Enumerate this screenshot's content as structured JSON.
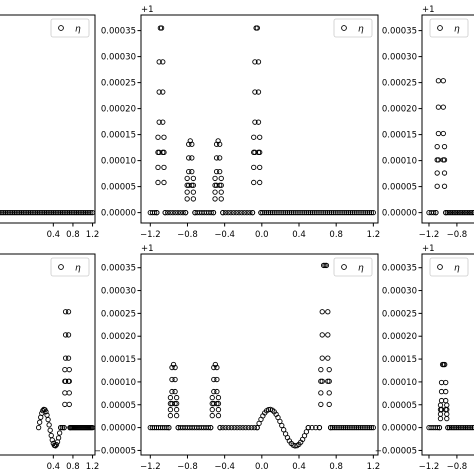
{
  "chart_data": [
    {
      "type": "scatter",
      "position": "top-left",
      "offset_label": "",
      "legend": {
        "marker": "circle",
        "label": "η",
        "placement": "top-right"
      },
      "xlim": [
        -1.3,
        1.25
      ],
      "ylim": [
        -2e-05,
        0.00038
      ],
      "xticks": [
        0.4,
        0.8,
        1.2
      ],
      "xtick_labels": [
        "0.4",
        "0.8",
        "1.2"
      ],
      "yticks": [],
      "ytick_labels": [],
      "series": [
        {
          "segments": [
            {
              "x_start": -1.3,
              "x_end": 1.2,
              "count": 70,
              "y": 0
            }
          ]
        }
      ]
    },
    {
      "type": "scatter",
      "position": "top-middle",
      "offset_label": "+1",
      "legend": {
        "marker": "circle",
        "label": "η",
        "placement": "top-right"
      },
      "xlim": [
        -1.3,
        1.25
      ],
      "ylim": [
        -2e-05,
        0.00038
      ],
      "xticks": [
        -1.2,
        -0.8,
        -0.4,
        0.0,
        0.4,
        0.8,
        1.2
      ],
      "xtick_labels": [
        "−1.2",
        "−0.8",
        "−0.4",
        "0.0",
        "0.4",
        "0.8",
        "1.2"
      ],
      "yticks": [
        0,
        5e-05,
        0.0001,
        0.00015,
        0.0002,
        0.00025,
        0.0003,
        0.00035
      ],
      "ytick_labels": [
        "0.00000",
        "0.00005",
        "0.00010",
        "0.00015",
        "0.00020",
        "0.00025",
        "0.00030",
        "0.00035"
      ],
      "series": [
        {
          "segments": [
            {
              "x_start": -1.2,
              "x_end": -1.13,
              "count": 4,
              "y": 0
            },
            {
              "x_start": -1.13,
              "x_end": -1.04,
              "count": 8,
              "y": 0.000355,
              "shape": "peak"
            },
            {
              "x_start": -1.04,
              "x_end": -0.82,
              "count": 9,
              "y": 0
            },
            {
              "x_start": -0.82,
              "x_end": -0.72,
              "count": 7,
              "y": 0.000138,
              "shape": "peak"
            },
            {
              "x_start": -0.72,
              "x_end": -0.52,
              "count": 9,
              "y": 0
            },
            {
              "x_start": -0.52,
              "x_end": -0.42,
              "count": 7,
              "y": 0.000138,
              "shape": "peak"
            },
            {
              "x_start": -0.42,
              "x_end": -0.1,
              "count": 12,
              "y": 0
            },
            {
              "x_start": -0.1,
              "x_end": -0.01,
              "count": 8,
              "y": 0.000355,
              "shape": "peak"
            },
            {
              "x_start": -0.01,
              "x_end": 1.2,
              "count": 60,
              "y": 0
            }
          ]
        }
      ]
    },
    {
      "type": "scatter",
      "position": "top-right",
      "offset_label": "+1",
      "legend": {
        "marker": "circle",
        "label": "η",
        "placement": "top-right"
      },
      "xlim": [
        -1.3,
        1.25
      ],
      "ylim": [
        -2e-05,
        0.00038
      ],
      "xticks": [
        -1.2,
        -0.8
      ],
      "xtick_labels": [
        "−1.2",
        "−0.8"
      ],
      "yticks": [
        0,
        5e-05,
        0.0001,
        0.00015,
        0.0002,
        0.00025,
        0.0003,
        0.00035
      ],
      "ytick_labels": [
        "0.00000",
        "0.00005",
        "0.00010",
        "0.00015",
        "0.00020",
        "0.00025",
        "0.00030",
        "0.00035"
      ],
      "series": [
        {
          "segments": [
            {
              "x_start": -1.2,
              "x_end": -1.1,
              "count": 4,
              "y": 0
            },
            {
              "x_start": -1.1,
              "x_end": -0.96,
              "count": 9,
              "y": 0.000355,
              "shape": "peak"
            },
            {
              "x_start": -0.96,
              "x_end": -0.55,
              "count": 18,
              "y": 0
            }
          ]
        }
      ]
    },
    {
      "type": "scatter",
      "position": "bottom-left",
      "offset_label": "",
      "legend": {
        "marker": "circle",
        "label": "η",
        "placement": "top-right"
      },
      "xlim": [
        -1.3,
        1.25
      ],
      "ylim": [
        -6e-05,
        0.00038
      ],
      "xticks": [
        0.4,
        0.8,
        1.2
      ],
      "xtick_labels": [
        "0.4",
        "0.8",
        "1.2"
      ],
      "yticks": [],
      "ytick_labels": [],
      "series": [
        {
          "segments": [
            {
              "x_start": 0.1,
              "x_end": 0.55,
              "count": 22,
              "y": 4e-05,
              "shape": "wave"
            },
            {
              "x_start": 0.55,
              "x_end": 0.62,
              "count": 3,
              "y": 0
            },
            {
              "x_start": 0.62,
              "x_end": 0.74,
              "count": 9,
              "y": 0.000355,
              "shape": "peak"
            },
            {
              "x_start": 0.74,
              "x_end": 1.2,
              "count": 24,
              "y": 0
            }
          ]
        }
      ]
    },
    {
      "type": "scatter",
      "position": "bottom-middle",
      "offset_label": "+1",
      "legend": {
        "marker": "circle",
        "label": "η",
        "placement": "top-right"
      },
      "xlim": [
        -1.3,
        1.25
      ],
      "ylim": [
        -6e-05,
        0.00038
      ],
      "xticks": [
        -1.2,
        -0.8,
        -0.4,
        0.0,
        0.4,
        0.8,
        1.2
      ],
      "xtick_labels": [
        "−1.2",
        "−0.8",
        "−0.4",
        "0.0",
        "0.4",
        "0.8",
        "1.2"
      ],
      "yticks": [
        -5e-05,
        0,
        5e-05,
        0.0001,
        0.00015,
        0.0002,
        0.00025,
        0.0003,
        0.00035
      ],
      "ytick_labels": [
        "−0.00005",
        "0.00000",
        "0.00005",
        "0.00010",
        "0.00015",
        "0.00020",
        "0.00025",
        "0.00030",
        "0.00035"
      ],
      "series": [
        {
          "segments": [
            {
              "x_start": -1.2,
              "x_end": -1.0,
              "count": 10,
              "y": 0
            },
            {
              "x_start": -1.0,
              "x_end": -0.9,
              "count": 7,
              "y": 0.000138,
              "shape": "peak"
            },
            {
              "x_start": -0.9,
              "x_end": -0.55,
              "count": 15,
              "y": 0
            },
            {
              "x_start": -0.55,
              "x_end": -0.45,
              "count": 7,
              "y": 0.000138,
              "shape": "peak"
            },
            {
              "x_start": -0.45,
              "x_end": -0.05,
              "count": 14,
              "y": 0
            },
            {
              "x_start": -0.05,
              "x_end": 0.5,
              "count": 28,
              "y": 4e-05,
              "shape": "wave"
            },
            {
              "x_start": 0.5,
              "x_end": 0.62,
              "count": 4,
              "y": 0
            },
            {
              "x_start": 0.62,
              "x_end": 0.74,
              "count": 9,
              "y": 0.000355,
              "shape": "peak"
            },
            {
              "x_start": 0.74,
              "x_end": 1.2,
              "count": 24,
              "y": 0
            }
          ]
        }
      ]
    },
    {
      "type": "scatter",
      "position": "bottom-right",
      "offset_label": "+1",
      "legend": {
        "marker": "circle",
        "label": "η",
        "placement": "top-right"
      },
      "xlim": [
        -1.3,
        1.25
      ],
      "ylim": [
        -6e-05,
        0.00038
      ],
      "xticks": [
        -1.2,
        -0.8
      ],
      "xtick_labels": [
        "−1.2",
        "−0.8"
      ],
      "yticks": [
        -5e-05,
        0,
        5e-05,
        0.0001,
        0.00015,
        0.0002,
        0.00025,
        0.0003,
        0.00035
      ],
      "ytick_labels": [
        "−0.00005",
        "0.00000",
        "0.00005",
        "0.00010",
        "0.00015",
        "0.00020",
        "0.00025",
        "0.00030",
        "0.00035"
      ],
      "series": [
        {
          "segments": [
            {
              "x_start": -1.2,
              "x_end": -1.05,
              "count": 6,
              "y": 0
            },
            {
              "x_start": -1.05,
              "x_end": -0.93,
              "count": 9,
              "y": 0.000138,
              "shape": "peak"
            },
            {
              "x_start": -0.93,
              "x_end": -0.55,
              "count": 16,
              "y": 0
            }
          ]
        }
      ]
    }
  ]
}
